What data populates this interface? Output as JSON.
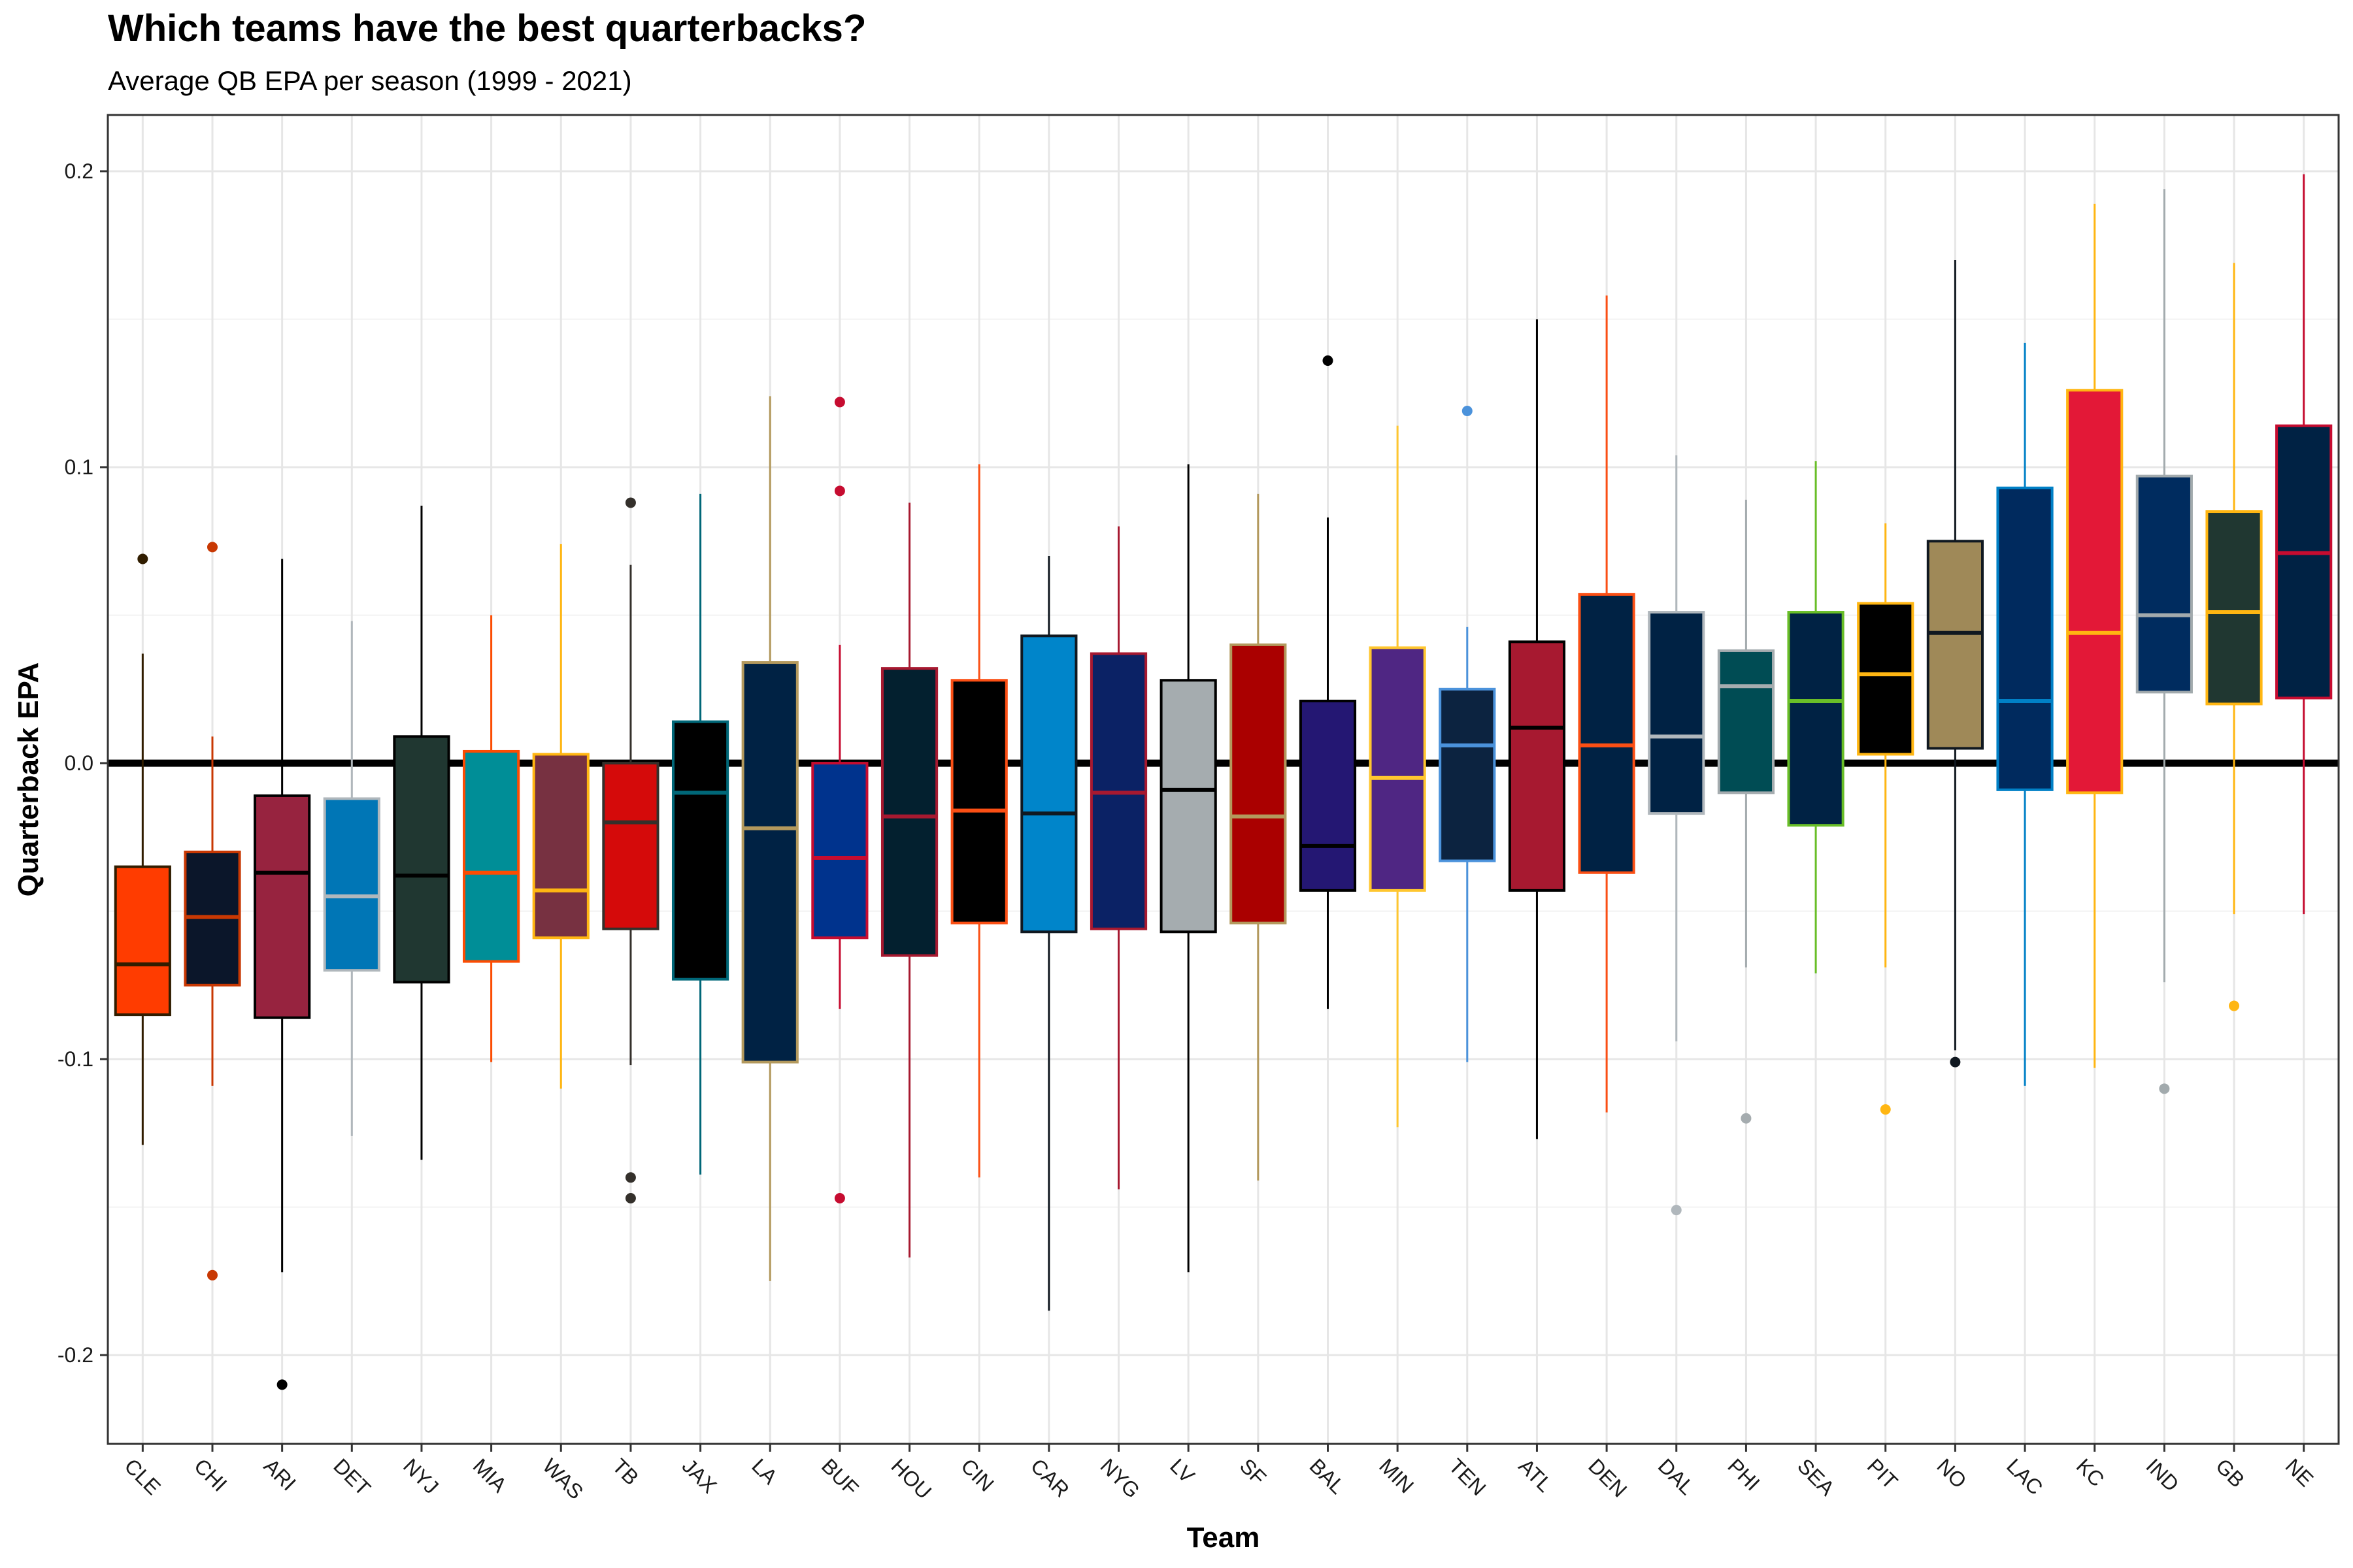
{
  "chart_data": {
    "type": "boxplot",
    "title": "Which teams have the best quarterbacks?",
    "subtitle": "Average QB EPA per season (1999 - 2021)",
    "xlabel": "Team",
    "ylabel": "Quarterback EPA",
    "ylim": [
      -0.23,
      0.219
    ],
    "yticks": [
      -0.2,
      -0.1,
      0.0,
      0.1,
      0.2
    ],
    "ytick_labels": [
      "-0.2",
      "-0.1",
      "0.0",
      "0.1",
      "0.2"
    ],
    "grid": true,
    "reference_line": 0,
    "teams": [
      {
        "team": "CLE",
        "fill": "#FF3C00",
        "line": "#311D00",
        "median_color": "#311D00",
        "whisker_low": -0.129,
        "q1": -0.085,
        "median": -0.068,
        "q3": -0.035,
        "whisker_high": 0.037,
        "outliers": [
          0.069
        ]
      },
      {
        "team": "CHI",
        "fill": "#0B162A",
        "line": "#C83803",
        "median_color": "#C83803",
        "whisker_low": -0.109,
        "q1": -0.075,
        "median": -0.052,
        "q3": -0.03,
        "whisker_high": 0.009,
        "outliers": [
          0.073,
          -0.173
        ]
      },
      {
        "team": "ARI",
        "fill": "#97233F",
        "line": "#000000",
        "median_color": "#000000",
        "whisker_low": -0.172,
        "q1": -0.086,
        "median": -0.037,
        "q3": -0.011,
        "whisker_high": 0.069,
        "outliers": [
          -0.21
        ]
      },
      {
        "team": "DET",
        "fill": "#0076B6",
        "line": "#B0B7BC",
        "median_color": "#B0B7BC",
        "whisker_low": -0.126,
        "q1": -0.07,
        "median": -0.045,
        "q3": -0.012,
        "whisker_high": 0.048,
        "outliers": []
      },
      {
        "team": "NYJ",
        "fill": "#203731",
        "line": "#000000",
        "median_color": "#000000",
        "whisker_low": -0.134,
        "q1": -0.074,
        "median": -0.038,
        "q3": 0.009,
        "whisker_high": 0.087,
        "outliers": []
      },
      {
        "team": "MIA",
        "fill": "#008E97",
        "line": "#FC4C02",
        "median_color": "#FC4C02",
        "whisker_low": -0.101,
        "q1": -0.067,
        "median": -0.037,
        "q3": 0.004,
        "whisker_high": 0.05,
        "outliers": []
      },
      {
        "team": "WAS",
        "fill": "#773141",
        "line": "#FFB612",
        "median_color": "#FFB612",
        "whisker_low": -0.11,
        "q1": -0.059,
        "median": -0.043,
        "q3": 0.003,
        "whisker_high": 0.074,
        "outliers": []
      },
      {
        "team": "TB",
        "fill": "#D50A0A",
        "line": "#34302B",
        "median_color": "#34302B",
        "whisker_low": -0.102,
        "q1": -0.056,
        "median": -0.02,
        "q3": 0.0,
        "whisker_high": 0.067,
        "outliers": [
          0.088,
          -0.14,
          -0.147
        ]
      },
      {
        "team": "JAX",
        "fill": "#000000",
        "line": "#006778",
        "median_color": "#006778",
        "whisker_low": -0.139,
        "q1": -0.073,
        "median": -0.01,
        "q3": 0.014,
        "whisker_high": 0.091,
        "outliers": []
      },
      {
        "team": "LA",
        "fill": "#002244",
        "line": "#B3995D",
        "median_color": "#B3995D",
        "whisker_low": -0.175,
        "q1": -0.101,
        "median": -0.022,
        "q3": 0.034,
        "whisker_high": 0.124,
        "outliers": []
      },
      {
        "team": "BUF",
        "fill": "#00338D",
        "line": "#C60C30",
        "median_color": "#C60C30",
        "whisker_low": -0.083,
        "q1": -0.059,
        "median": -0.032,
        "q3": 0.0,
        "whisker_high": 0.04,
        "outliers": [
          0.122,
          0.092,
          -0.147
        ]
      },
      {
        "team": "HOU",
        "fill": "#03202F",
        "line": "#A71930",
        "median_color": "#A71930",
        "whisker_low": -0.167,
        "q1": -0.065,
        "median": -0.018,
        "q3": 0.032,
        "whisker_high": 0.088,
        "outliers": []
      },
      {
        "team": "CIN",
        "fill": "#000000",
        "line": "#FB4F14",
        "median_color": "#FB4F14",
        "whisker_low": -0.14,
        "q1": -0.054,
        "median": -0.016,
        "q3": 0.028,
        "whisker_high": 0.101,
        "outliers": []
      },
      {
        "team": "CAR",
        "fill": "#0085CA",
        "line": "#101820",
        "median_color": "#101820",
        "whisker_low": -0.185,
        "q1": -0.057,
        "median": -0.017,
        "q3": 0.043,
        "whisker_high": 0.07,
        "outliers": []
      },
      {
        "team": "NYG",
        "fill": "#0B2265",
        "line": "#A71930",
        "median_color": "#A71930",
        "whisker_low": -0.144,
        "q1": -0.056,
        "median": -0.01,
        "q3": 0.037,
        "whisker_high": 0.08,
        "outliers": []
      },
      {
        "team": "LV",
        "fill": "#A5ACAF",
        "line": "#000000",
        "median_color": "#000000",
        "whisker_low": -0.172,
        "q1": -0.057,
        "median": -0.009,
        "q3": 0.028,
        "whisker_high": 0.101,
        "outliers": []
      },
      {
        "team": "SF",
        "fill": "#AA0000",
        "line": "#B3995D",
        "median_color": "#B3995D",
        "whisker_low": -0.141,
        "q1": -0.054,
        "median": -0.018,
        "q3": 0.04,
        "whisker_high": 0.091,
        "outliers": []
      },
      {
        "team": "BAL",
        "fill": "#241773",
        "line": "#000000",
        "median_color": "#000000",
        "whisker_low": -0.083,
        "q1": -0.043,
        "median": -0.028,
        "q3": 0.021,
        "whisker_high": 0.083,
        "outliers": [
          0.136
        ]
      },
      {
        "team": "MIN",
        "fill": "#4F2683",
        "line": "#FFC62F",
        "median_color": "#FFC62F",
        "whisker_low": -0.123,
        "q1": -0.043,
        "median": -0.005,
        "q3": 0.039,
        "whisker_high": 0.114,
        "outliers": []
      },
      {
        "team": "TEN",
        "fill": "#0C2340",
        "line": "#4B92DB",
        "median_color": "#4B92DB",
        "whisker_low": -0.101,
        "q1": -0.033,
        "median": 0.006,
        "q3": 0.025,
        "whisker_high": 0.046,
        "outliers": [
          0.119
        ]
      },
      {
        "team": "ATL",
        "fill": "#A71930",
        "line": "#000000",
        "median_color": "#000000",
        "whisker_low": -0.127,
        "q1": -0.043,
        "median": 0.012,
        "q3": 0.041,
        "whisker_high": 0.15,
        "outliers": []
      },
      {
        "team": "DEN",
        "fill": "#002244",
        "line": "#FB4F14",
        "median_color": "#FB4F14",
        "whisker_low": -0.118,
        "q1": -0.037,
        "median": 0.006,
        "q3": 0.057,
        "whisker_high": 0.158,
        "outliers": []
      },
      {
        "team": "DAL",
        "fill": "#002244",
        "line": "#B0B7BC",
        "median_color": "#B0B7BC",
        "whisker_low": -0.094,
        "q1": -0.017,
        "median": 0.009,
        "q3": 0.051,
        "whisker_high": 0.104,
        "outliers": [
          -0.151
        ]
      },
      {
        "team": "PHI",
        "fill": "#004C54",
        "line": "#A5ACAF",
        "median_color": "#A5ACAF",
        "whisker_low": -0.069,
        "q1": -0.01,
        "median": 0.026,
        "q3": 0.038,
        "whisker_high": 0.089,
        "outliers": [
          -0.12
        ]
      },
      {
        "team": "SEA",
        "fill": "#002244",
        "line": "#69BE28",
        "median_color": "#69BE28",
        "whisker_low": -0.071,
        "q1": -0.021,
        "median": 0.021,
        "q3": 0.051,
        "whisker_high": 0.102,
        "outliers": []
      },
      {
        "team": "PIT",
        "fill": "#000000",
        "line": "#FFB612",
        "median_color": "#FFB612",
        "whisker_low": -0.069,
        "q1": 0.003,
        "median": 0.03,
        "q3": 0.054,
        "whisker_high": 0.081,
        "outliers": [
          -0.117
        ]
      },
      {
        "team": "NO",
        "fill": "#9F8958",
        "line": "#101820",
        "median_color": "#101820",
        "whisker_low": -0.097,
        "q1": 0.005,
        "median": 0.044,
        "q3": 0.075,
        "whisker_high": 0.17,
        "outliers": [
          -0.101
        ]
      },
      {
        "team": "LAC",
        "fill": "#002A5E",
        "line": "#0080C6",
        "median_color": "#0080C6",
        "whisker_low": -0.109,
        "q1": -0.009,
        "median": 0.021,
        "q3": 0.093,
        "whisker_high": 0.142,
        "outliers": []
      },
      {
        "team": "KC",
        "fill": "#E31837",
        "line": "#FFB612",
        "median_color": "#FFB612",
        "whisker_low": -0.103,
        "q1": -0.01,
        "median": 0.044,
        "q3": 0.126,
        "whisker_high": 0.189,
        "outliers": []
      },
      {
        "team": "IND",
        "fill": "#002C5F",
        "line": "#A2AAAD",
        "median_color": "#A2AAAD",
        "whisker_low": -0.074,
        "q1": 0.024,
        "median": 0.05,
        "q3": 0.097,
        "whisker_high": 0.194,
        "outliers": [
          -0.11
        ]
      },
      {
        "team": "GB",
        "fill": "#203731",
        "line": "#FFB612",
        "median_color": "#FFB612",
        "whisker_low": -0.051,
        "q1": 0.02,
        "median": 0.051,
        "q3": 0.085,
        "whisker_high": 0.169,
        "outliers": [
          -0.082
        ]
      },
      {
        "team": "NE",
        "fill": "#002244",
        "line": "#C60C30",
        "median_color": "#C60C30",
        "whisker_low": -0.051,
        "q1": 0.022,
        "median": 0.071,
        "q3": 0.114,
        "whisker_high": 0.199,
        "outliers": []
      }
    ]
  }
}
